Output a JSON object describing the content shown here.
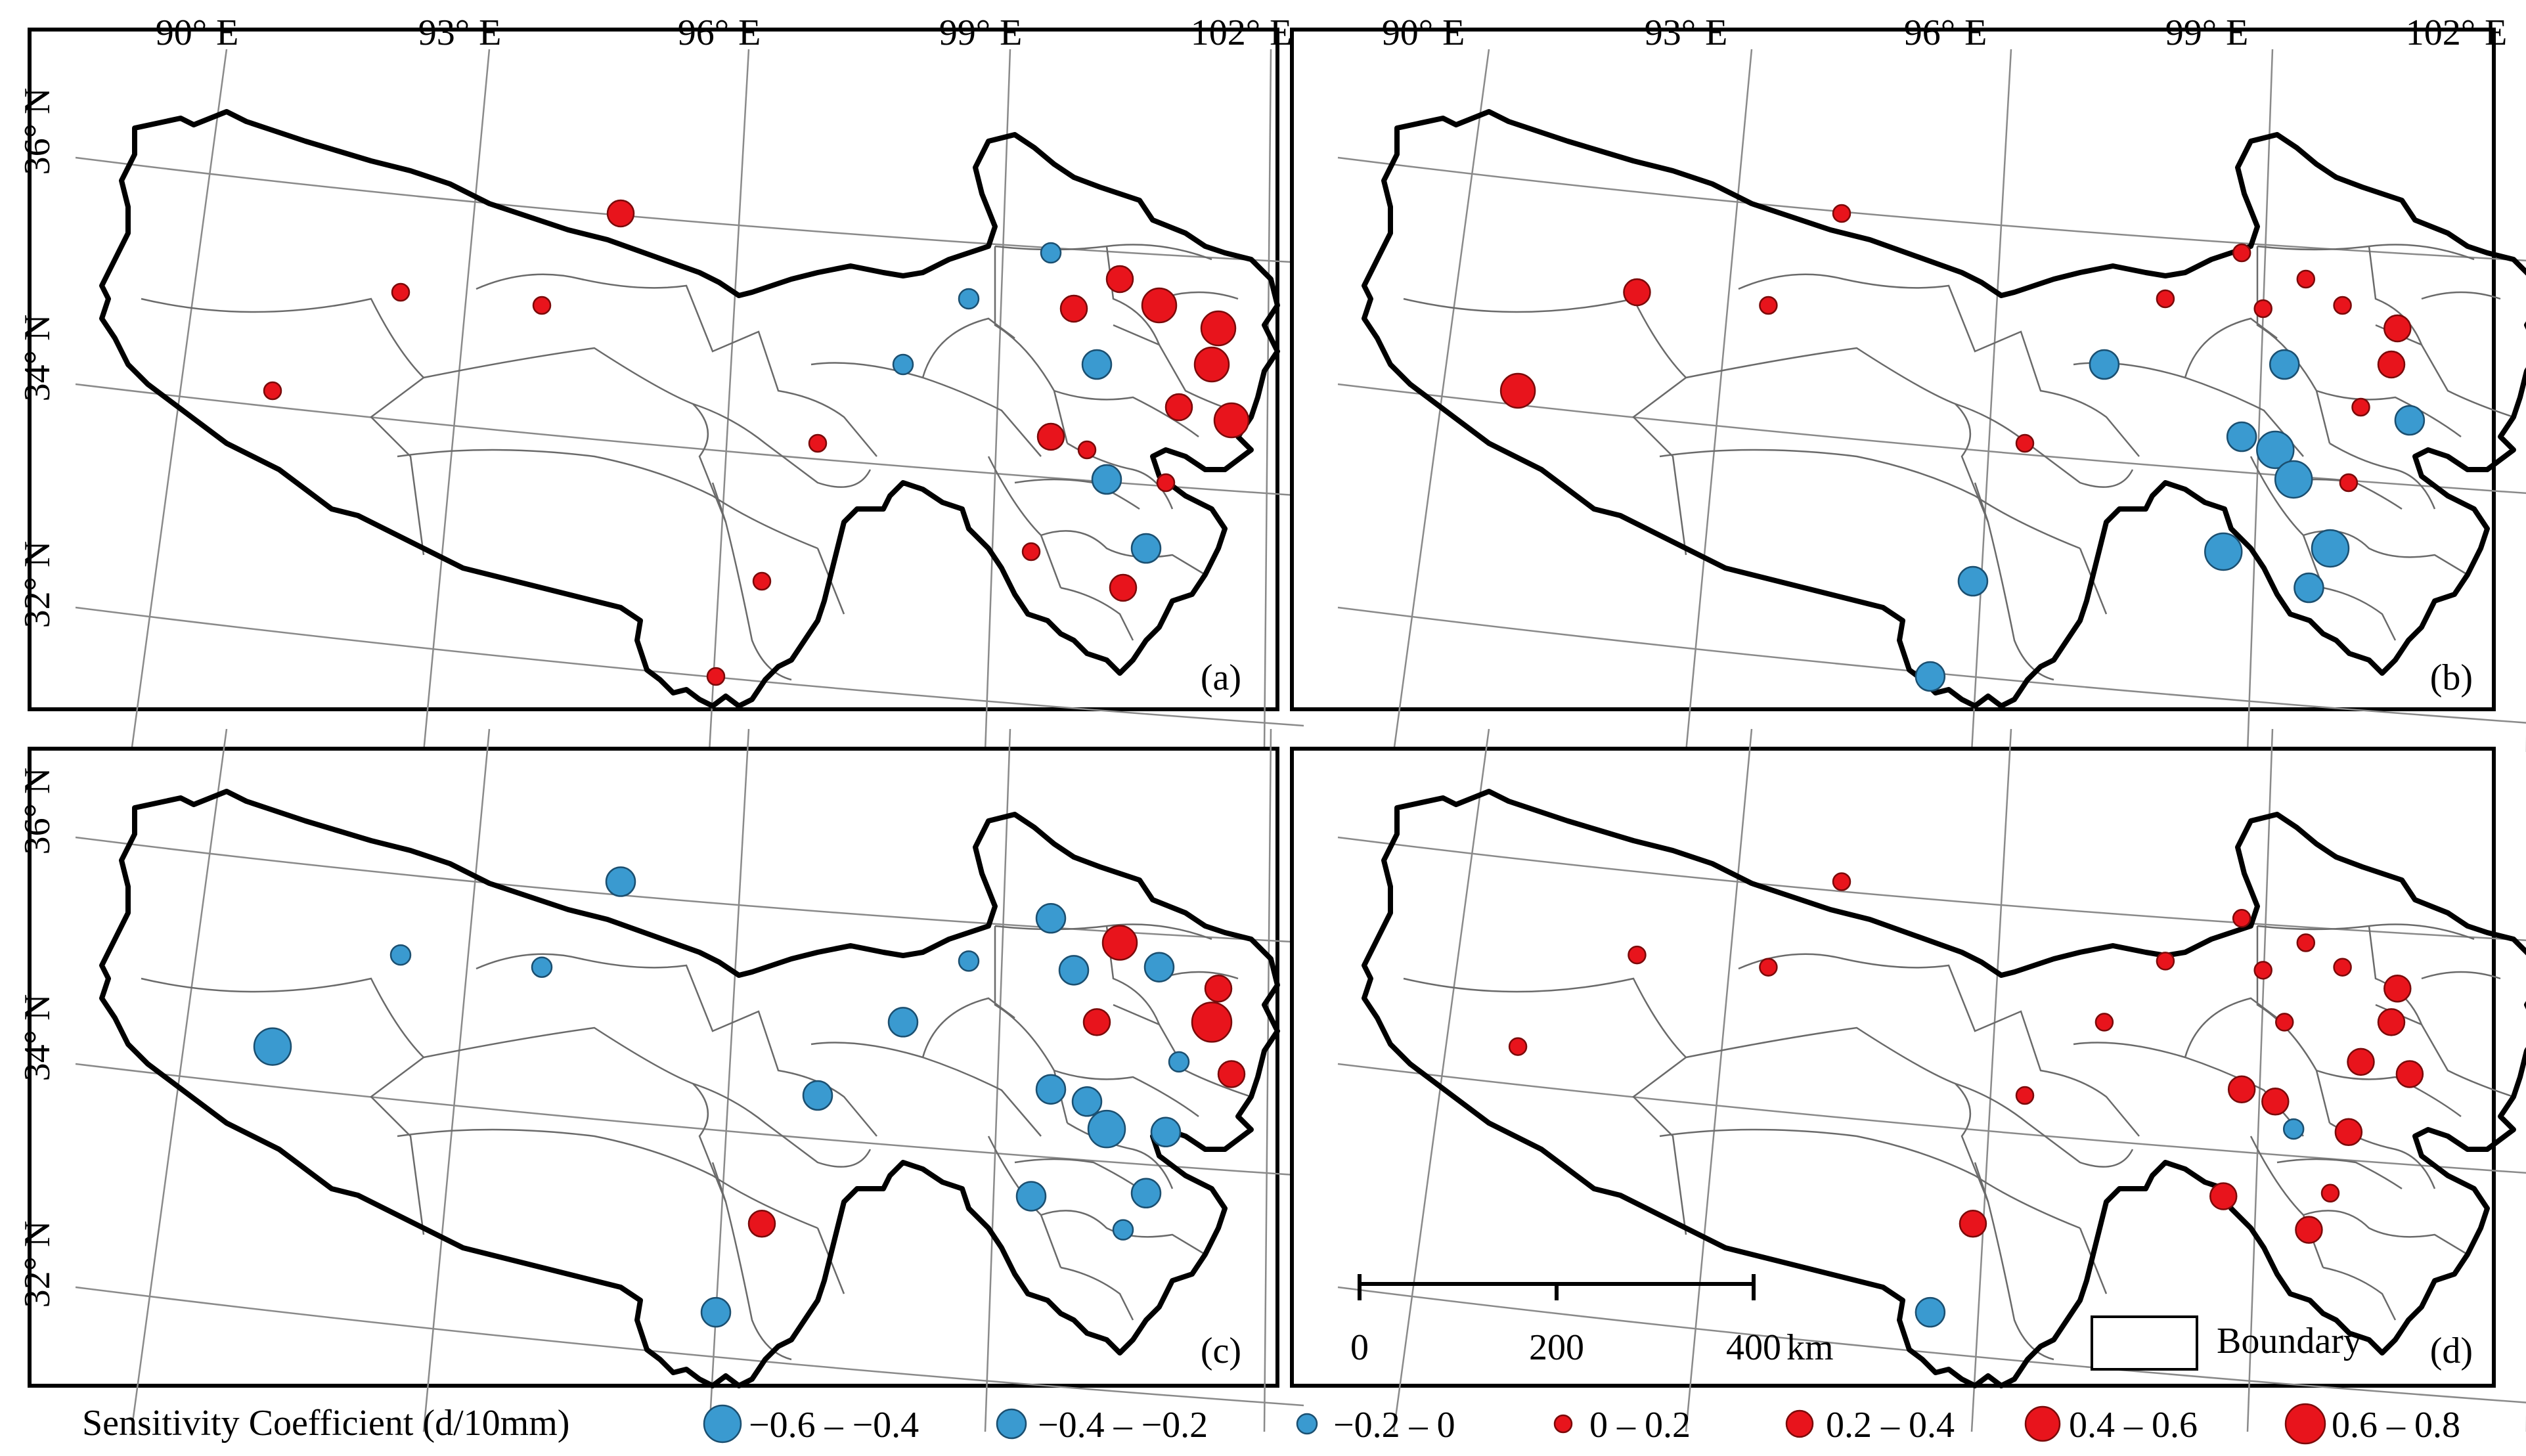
{
  "panels": [
    {
      "id": "a",
      "label": "(a)",
      "stations": [
        {
          "id": "s01",
          "cls": 4
        },
        {
          "id": "s02",
          "cls": 4
        },
        {
          "id": "s03",
          "cls": 4
        },
        {
          "id": "s04",
          "cls": 5
        },
        {
          "id": "s05",
          "cls": 3
        },
        {
          "id": "s06",
          "cls": 3
        },
        {
          "id": "s07",
          "cls": 3
        },
        {
          "id": "s08",
          "cls": 5
        },
        {
          "id": "s09",
          "cls": 2
        },
        {
          "id": "s10",
          "cls": 5
        },
        {
          "id": "s11",
          "cls": 6
        },
        {
          "id": "s12",
          "cls": 6
        },
        {
          "id": "s13",
          "cls": 6
        },
        {
          "id": "s14",
          "cls": 5
        },
        {
          "id": "s15",
          "cls": 6
        },
        {
          "id": "s16",
          "cls": 4
        },
        {
          "id": "s17",
          "cls": 5
        },
        {
          "id": "s18",
          "cls": 4
        },
        {
          "id": "s19",
          "cls": 2
        },
        {
          "id": "s20",
          "cls": 4
        },
        {
          "id": "s21",
          "cls": 4
        },
        {
          "id": "s22",
          "cls": 2
        },
        {
          "id": "s23",
          "cls": 4
        },
        {
          "id": "s24",
          "cls": 5
        },
        {
          "id": "s25",
          "cls": 4
        }
      ]
    },
    {
      "id": "b",
      "label": "(b)",
      "stations": [
        {
          "id": "s01",
          "cls": 6
        },
        {
          "id": "s02",
          "cls": 5
        },
        {
          "id": "s03",
          "cls": 4
        },
        {
          "id": "s04",
          "cls": 4
        },
        {
          "id": "s05",
          "cls": 2
        },
        {
          "id": "s06",
          "cls": 4
        },
        {
          "id": "s07",
          "cls": 4
        },
        {
          "id": "s08",
          "cls": 4
        },
        {
          "id": "s09",
          "cls": 2
        },
        {
          "id": "s10",
          "cls": 4
        },
        {
          "id": "s11",
          "cls": 4
        },
        {
          "id": "s12",
          "cls": 5
        },
        {
          "id": "s13",
          "cls": 5
        },
        {
          "id": "s14",
          "cls": 4
        },
        {
          "id": "s15",
          "cls": 2
        },
        {
          "id": "s16",
          "cls": 4
        },
        {
          "id": "s17",
          "cls": 2
        },
        {
          "id": "s18",
          "cls": 1
        },
        {
          "id": "s19",
          "cls": 1
        },
        {
          "id": "s20",
          "cls": 4
        },
        {
          "id": "s21",
          "cls": 1
        },
        {
          "id": "s22",
          "cls": 1
        },
        {
          "id": "s23",
          "cls": 2
        },
        {
          "id": "s24",
          "cls": 2
        },
        {
          "id": "s25",
          "cls": 2
        }
      ]
    },
    {
      "id": "c",
      "label": "(c)",
      "stations": [
        {
          "id": "s01",
          "cls": 1
        },
        {
          "id": "s02",
          "cls": 3
        },
        {
          "id": "s03",
          "cls": 3
        },
        {
          "id": "s04",
          "cls": 2
        },
        {
          "id": "s05",
          "cls": 2
        },
        {
          "id": "s06",
          "cls": 3
        },
        {
          "id": "s07",
          "cls": 2
        },
        {
          "id": "s08",
          "cls": 2
        },
        {
          "id": "s09",
          "cls": 5
        },
        {
          "id": "s10",
          "cls": 6
        },
        {
          "id": "s11",
          "cls": 2
        },
        {
          "id": "s12",
          "cls": 5
        },
        {
          "id": "s13",
          "cls": 7
        },
        {
          "id": "s14",
          "cls": 3
        },
        {
          "id": "s15",
          "cls": 5
        },
        {
          "id": "s16",
          "cls": 2
        },
        {
          "id": "s17",
          "cls": 2
        },
        {
          "id": "s18",
          "cls": 2
        },
        {
          "id": "s19",
          "cls": 1
        },
        {
          "id": "s20",
          "cls": 2
        },
        {
          "id": "s21",
          "cls": 2
        },
        {
          "id": "s22",
          "cls": 2
        },
        {
          "id": "s23",
          "cls": 5
        },
        {
          "id": "s24",
          "cls": 3
        },
        {
          "id": "s25",
          "cls": 2
        }
      ]
    },
    {
      "id": "d",
      "label": "(d)",
      "stations": [
        {
          "id": "s01",
          "cls": 4
        },
        {
          "id": "s02",
          "cls": 4
        },
        {
          "id": "s03",
          "cls": 4
        },
        {
          "id": "s04",
          "cls": 4
        },
        {
          "id": "s05",
          "cls": 4
        },
        {
          "id": "s06",
          "cls": 4
        },
        {
          "id": "s07",
          "cls": 4
        },
        {
          "id": "s08",
          "cls": 4
        },
        {
          "id": "s09",
          "cls": 4
        },
        {
          "id": "s10",
          "cls": 4
        },
        {
          "id": "s11",
          "cls": 4
        },
        {
          "id": "s12",
          "cls": 5
        },
        {
          "id": "s13",
          "cls": 5
        },
        {
          "id": "s14",
          "cls": 5
        },
        {
          "id": "s15",
          "cls": 5
        },
        {
          "id": "s16",
          "cls": 4
        },
        {
          "id": "s17",
          "cls": 5
        },
        {
          "id": "s18",
          "cls": 5
        },
        {
          "id": "s19",
          "cls": 3
        },
        {
          "id": "s20",
          "cls": 5
        },
        {
          "id": "s21",
          "cls": 5
        },
        {
          "id": "s22",
          "cls": 4
        },
        {
          "id": "s23",
          "cls": 5
        },
        {
          "id": "s24",
          "cls": 5
        },
        {
          "id": "s25",
          "cls": 2
        }
      ]
    }
  ],
  "lon_labels": [
    "90° E",
    "93° E",
    "96° E",
    "99° E",
    "102° E"
  ],
  "lat_labels": [
    "36° N",
    "34° N",
    "32° N"
  ],
  "scalebar": {
    "ticks": [
      "0",
      "200",
      "400"
    ],
    "unit": "km"
  },
  "boundary_label": "Boundary",
  "legend": {
    "title": "Sensitivity Coefficient (d/10mm)",
    "classes": [
      {
        "label": "−0.6 – −0.4",
        "color": "#3a9ad0"
      },
      {
        "label": "−0.4 – −0.2",
        "color": "#3a9ad0"
      },
      {
        "label": "−0.2 – 0",
        "color": "#3a9ad0"
      },
      {
        "label": "0 – 0.2",
        "color": "#e8141c"
      },
      {
        "label": "0.2 – 0.4",
        "color": "#e8141c"
      },
      {
        "label": "0.4 – 0.6",
        "color": "#e8141c"
      },
      {
        "label": "0.6 – 0.8",
        "color": "#e8141c"
      }
    ]
  }
}
